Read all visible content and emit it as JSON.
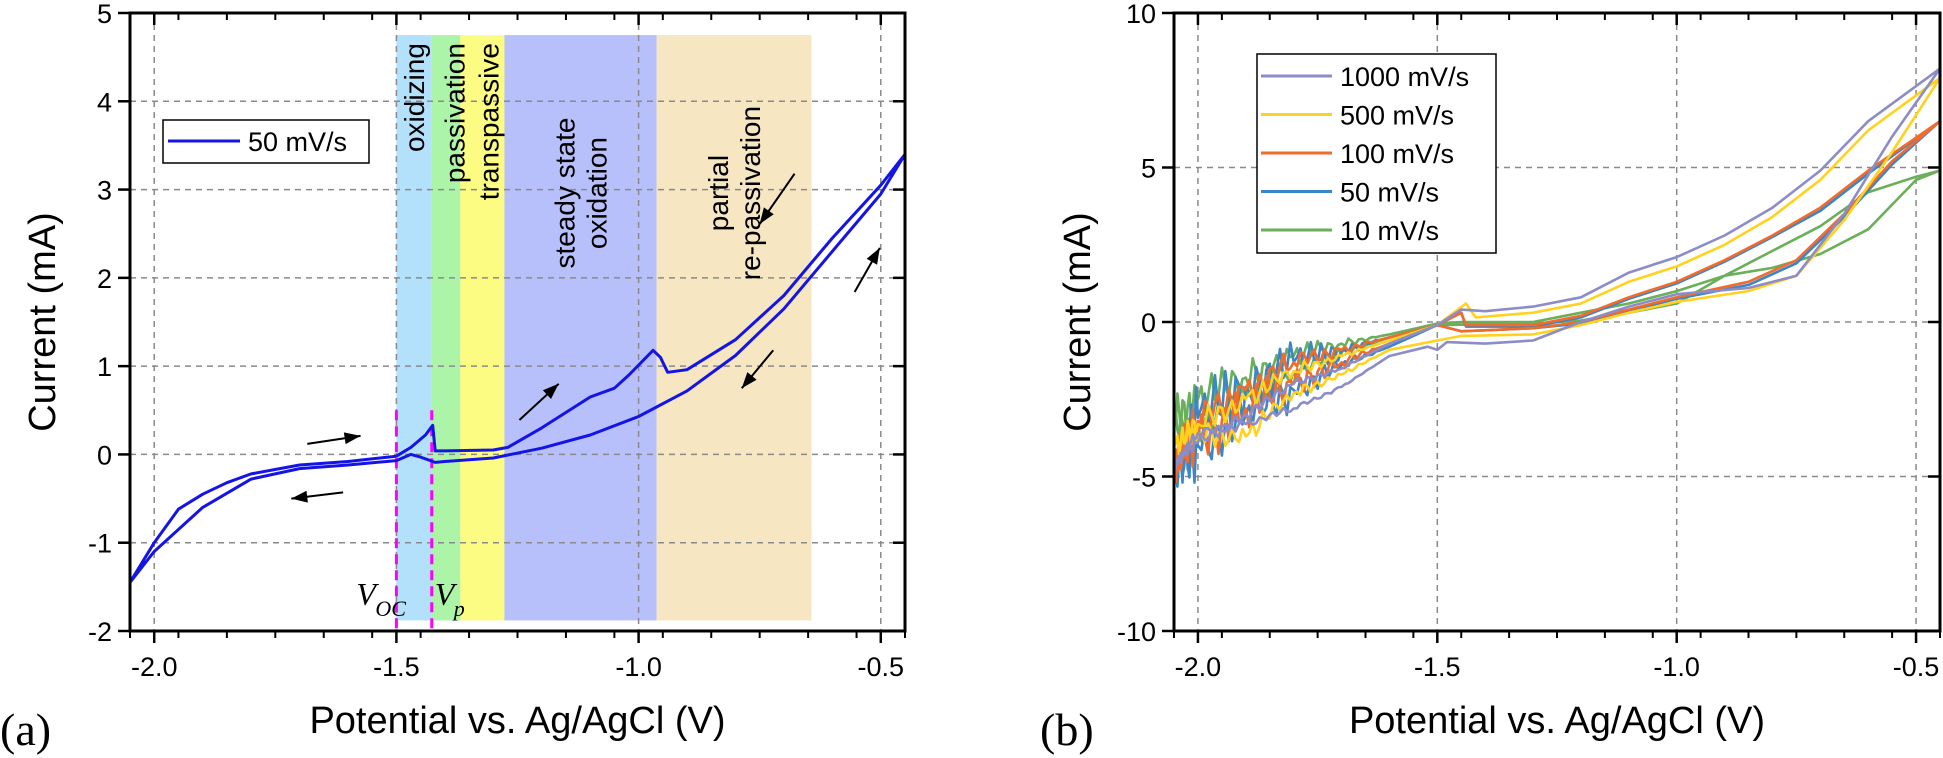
{
  "chart_data": [
    {
      "type": "line",
      "panel_label": "(a)",
      "xlabel": "Potential vs. Ag/AgCl (V)",
      "ylabel": "Current (mA)",
      "xlim": [
        -2.05,
        -0.45
      ],
      "ylim": [
        -2,
        5
      ],
      "xticks": [
        -2.0,
        -1.5,
        -1.0,
        -0.5
      ],
      "xtick_labels": [
        "-2.0",
        "-1.5",
        "-1.0",
        "-0.5"
      ],
      "yticks": [
        -2,
        -1,
        0,
        1,
        2,
        3,
        4,
        5
      ],
      "ytick_labels": [
        "-2",
        "-1",
        "0",
        "1",
        "2",
        "3",
        "4",
        "5"
      ],
      "grid": true,
      "legend_position": "upper-left",
      "series": [
        {
          "name": "50 mV/s",
          "color": "#1414e6",
          "x": [
            -1.5,
            -1.47,
            -1.44,
            -1.425,
            -1.42,
            -1.4,
            -1.3,
            -1.27,
            -1.2,
            -1.1,
            -1.05,
            -1.02,
            -0.97,
            -0.955,
            -0.94,
            -0.9,
            -0.8,
            -0.7,
            -0.6,
            -0.5,
            -0.45,
            -0.5,
            -0.6,
            -0.7,
            -0.8,
            -0.9,
            -1.0,
            -1.1,
            -1.2,
            -1.3,
            -1.4,
            -1.42,
            -1.45,
            -1.47,
            -1.5,
            -1.6,
            -1.7,
            -1.8,
            -1.9,
            -2.0,
            -2.05,
            -2.0,
            -1.95,
            -1.9,
            -1.85,
            -1.8,
            -1.7,
            -1.6,
            -1.5
          ],
          "y": [
            -0.02,
            0.08,
            0.22,
            0.33,
            0.04,
            0.04,
            0.05,
            0.08,
            0.3,
            0.65,
            0.75,
            0.9,
            1.18,
            1.1,
            0.93,
            0.96,
            1.3,
            1.8,
            2.45,
            3.05,
            3.4,
            2.95,
            2.3,
            1.65,
            1.12,
            0.72,
            0.43,
            0.22,
            0.07,
            -0.04,
            -0.08,
            -0.09,
            -0.03,
            0.0,
            -0.07,
            -0.12,
            -0.16,
            -0.28,
            -0.6,
            -1.1,
            -1.45,
            -1.0,
            -0.62,
            -0.45,
            -0.32,
            -0.22,
            -0.12,
            -0.08,
            -0.02
          ]
        }
      ],
      "regions": [
        {
          "labels": [
            "oxidizing"
          ],
          "x0": -1.5,
          "x1": -1.427,
          "y0": -1.88,
          "y1": 4.75,
          "color": "#b3e0fb"
        },
        {
          "labels": [
            "passivation"
          ],
          "x0": -1.427,
          "x1": -1.368,
          "y0": -1.88,
          "y1": 4.75,
          "color": "#acf5a8"
        },
        {
          "labels": [
            "transpassive"
          ],
          "x0": -1.368,
          "x1": -1.277,
          "y0": -1.88,
          "y1": 4.75,
          "color": "#fcfc83"
        },
        {
          "labels": [
            "steady state",
            "oxidation"
          ],
          "x0": -1.277,
          "x1": -0.963,
          "y0": -1.88,
          "y1": 4.75,
          "color": "#b8c0fb"
        },
        {
          "labels": [
            "partial",
            "re-passivation"
          ],
          "x0": -0.963,
          "x1": -0.643,
          "y0": -1.88,
          "y1": 4.75,
          "color": "#f6e6c2"
        }
      ],
      "markers": [
        {
          "x": -1.5,
          "label": "V",
          "sub": "OC",
          "color": "#ff00ff"
        },
        {
          "x": -1.427,
          "label": "V",
          "sub": "p",
          "color": "#ff00ff"
        }
      ],
      "arrows": [
        {
          "x0": -1.684,
          "y0": 0.12,
          "x1": -1.574,
          "y1": 0.21
        },
        {
          "x0": -1.61,
          "y0": -0.43,
          "x1": -1.717,
          "y1": -0.5
        },
        {
          "x0": -1.246,
          "y0": 0.39,
          "x1": -1.165,
          "y1": 0.8
        },
        {
          "x0": -0.678,
          "y0": 3.18,
          "x1": -0.75,
          "y1": 2.61
        },
        {
          "x0": -0.554,
          "y0": 1.84,
          "x1": -0.502,
          "y1": 2.34
        },
        {
          "x0": -0.722,
          "y0": 1.18,
          "x1": -0.787,
          "y1": 0.75
        }
      ]
    },
    {
      "type": "line",
      "panel_label": "(b)",
      "xlabel": "Potential vs. Ag/AgCl (V)",
      "ylabel": "Current (mA)",
      "xlim": [
        -2.05,
        -0.45
      ],
      "ylim": [
        -10,
        10
      ],
      "xticks": [
        -2.0,
        -1.5,
        -1.0,
        -0.5
      ],
      "xtick_labels": [
        "-2.0",
        "-1.5",
        "-1.0",
        "-0.5"
      ],
      "yticks": [
        -10,
        -5,
        0,
        5,
        10
      ],
      "ytick_labels": [
        "-10",
        "-5",
        "0",
        "5",
        "10"
      ],
      "grid": true,
      "legend_position": "upper-left",
      "series": [
        {
          "name": "1000 mV/s",
          "color": "#8c8cc8",
          "noise": 0.15,
          "x": [
            -2.05,
            -2.0,
            -1.9,
            -1.8,
            -1.7,
            -1.6,
            -1.5,
            -1.45,
            -1.4,
            -1.3,
            -1.2,
            -1.1,
            -1.0,
            -0.9,
            -0.8,
            -0.7,
            -0.6,
            -0.45,
            -0.55,
            -0.65,
            -0.75,
            -0.85,
            -1.0,
            -1.1,
            -1.2,
            -1.3,
            -1.4,
            -1.48,
            -1.5,
            -1.52,
            -1.6,
            -1.7,
            -1.8,
            -1.9,
            -2.0,
            -2.05
          ],
          "y": [
            -4.6,
            -3.9,
            -3.0,
            -2.0,
            -1.5,
            -0.7,
            -0.1,
            0.4,
            0.35,
            0.5,
            0.8,
            1.6,
            2.1,
            2.8,
            3.7,
            4.9,
            6.5,
            8.2,
            6.0,
            3.5,
            1.5,
            1.1,
            0.9,
            0.5,
            0.0,
            -0.6,
            -0.7,
            -0.65,
            -0.9,
            -0.8,
            -1.1,
            -2.1,
            -2.8,
            -3.3,
            -3.6,
            -4.6
          ]
        },
        {
          "name": "500 mV/s",
          "color": "#ffd21e",
          "noise": 0.35,
          "x": [
            -2.05,
            -2.0,
            -1.9,
            -1.8,
            -1.7,
            -1.6,
            -1.5,
            -1.44,
            -1.42,
            -1.3,
            -1.2,
            -1.1,
            -1.0,
            -0.9,
            -0.8,
            -0.7,
            -0.6,
            -0.45,
            -0.55,
            -0.65,
            -0.75,
            -0.85,
            -1.0,
            -1.1,
            -1.2,
            -1.3,
            -1.45,
            -1.5,
            -1.6,
            -1.7,
            -1.8,
            -1.9,
            -2.0,
            -2.05
          ],
          "y": [
            -4.0,
            -3.3,
            -2.5,
            -1.6,
            -1.1,
            -0.6,
            -0.1,
            0.6,
            0.15,
            0.3,
            0.6,
            1.3,
            1.8,
            2.5,
            3.4,
            4.6,
            6.2,
            7.9,
            5.5,
            3.3,
            1.5,
            1.0,
            0.65,
            0.3,
            -0.1,
            -0.4,
            -0.45,
            -0.6,
            -0.9,
            -1.7,
            -2.3,
            -3.7,
            -3.6,
            -4.0
          ]
        },
        {
          "name": "100 mV/s",
          "color": "#f26b2a",
          "noise": 0.6,
          "x": [
            -2.05,
            -2.0,
            -1.9,
            -1.8,
            -1.7,
            -1.6,
            -1.5,
            -1.45,
            -1.44,
            -1.3,
            -1.2,
            -1.1,
            -1.0,
            -0.9,
            -0.8,
            -0.7,
            -0.6,
            -0.45,
            -0.55,
            -0.65,
            -0.75,
            -0.85,
            -1.0,
            -1.1,
            -1.2,
            -1.3,
            -1.45,
            -1.5,
            -1.6,
            -1.7,
            -1.8,
            -1.9,
            -2.0,
            -2.05
          ],
          "y": [
            -4.5,
            -3.2,
            -2.2,
            -1.3,
            -0.9,
            -0.5,
            -0.1,
            0.3,
            -0.1,
            -0.1,
            0.2,
            0.8,
            1.3,
            2.0,
            2.8,
            3.7,
            4.9,
            6.5,
            5.2,
            3.5,
            2.0,
            1.3,
            0.8,
            0.4,
            0.0,
            -0.2,
            -0.3,
            -0.1,
            -0.7,
            -1.3,
            -2.0,
            -2.8,
            -3.8,
            -4.5
          ]
        },
        {
          "name": "50 mV/s",
          "color": "#3a86c8",
          "noise": 0.75,
          "x": [
            -2.05,
            -2.0,
            -1.9,
            -1.8,
            -1.7,
            -1.6,
            -1.5,
            -1.45,
            -1.44,
            -1.3,
            -1.2,
            -1.1,
            -1.0,
            -0.9,
            -0.8,
            -0.7,
            -0.6,
            -0.45,
            -0.55,
            -0.65,
            -0.75,
            -0.85,
            -1.0,
            -1.1,
            -1.2,
            -1.3,
            -1.45,
            -1.5,
            -1.6,
            -1.7,
            -1.8,
            -1.9,
            -2.0,
            -2.05
          ],
          "y": [
            -4.8,
            -3.1,
            -2.1,
            -1.3,
            -0.9,
            -0.5,
            -0.1,
            0.3,
            -0.15,
            -0.15,
            0.15,
            0.75,
            1.25,
            1.95,
            2.75,
            3.6,
            4.8,
            6.5,
            5.1,
            3.4,
            1.9,
            1.2,
            0.75,
            0.35,
            -0.05,
            -0.2,
            -0.3,
            -0.1,
            -0.8,
            -1.4,
            -2.2,
            -3.0,
            -4.0,
            -5.0
          ]
        },
        {
          "name": "10 mV/s",
          "color": "#6aaf5a",
          "noise": 0.5,
          "x": [
            -2.05,
            -2.0,
            -1.9,
            -1.8,
            -1.7,
            -1.6,
            -1.5,
            -1.45,
            -1.3,
            -1.2,
            -1.1,
            -1.0,
            -0.9,
            -0.8,
            -0.7,
            -0.6,
            -0.5,
            -0.45,
            -0.5,
            -0.6,
            -0.7,
            -0.8,
            -0.9,
            -1.0,
            -1.1,
            -1.2,
            -1.3,
            -1.5,
            -1.6,
            -1.7,
            -1.8,
            -1.9,
            -2.0,
            -2.05
          ],
          "y": [
            -3.0,
            -2.5,
            -1.8,
            -1.1,
            -0.7,
            -0.4,
            -0.05,
            0.0,
            0.0,
            0.3,
            0.6,
            1.0,
            1.5,
            2.3,
            3.1,
            4.2,
            4.7,
            4.9,
            4.6,
            3.0,
            2.2,
            1.75,
            1.5,
            0.6,
            0.3,
            0.05,
            -0.05,
            -0.1,
            -0.5,
            -1.0,
            -1.6,
            -2.5,
            -3.3,
            -3.5
          ]
        }
      ]
    }
  ]
}
